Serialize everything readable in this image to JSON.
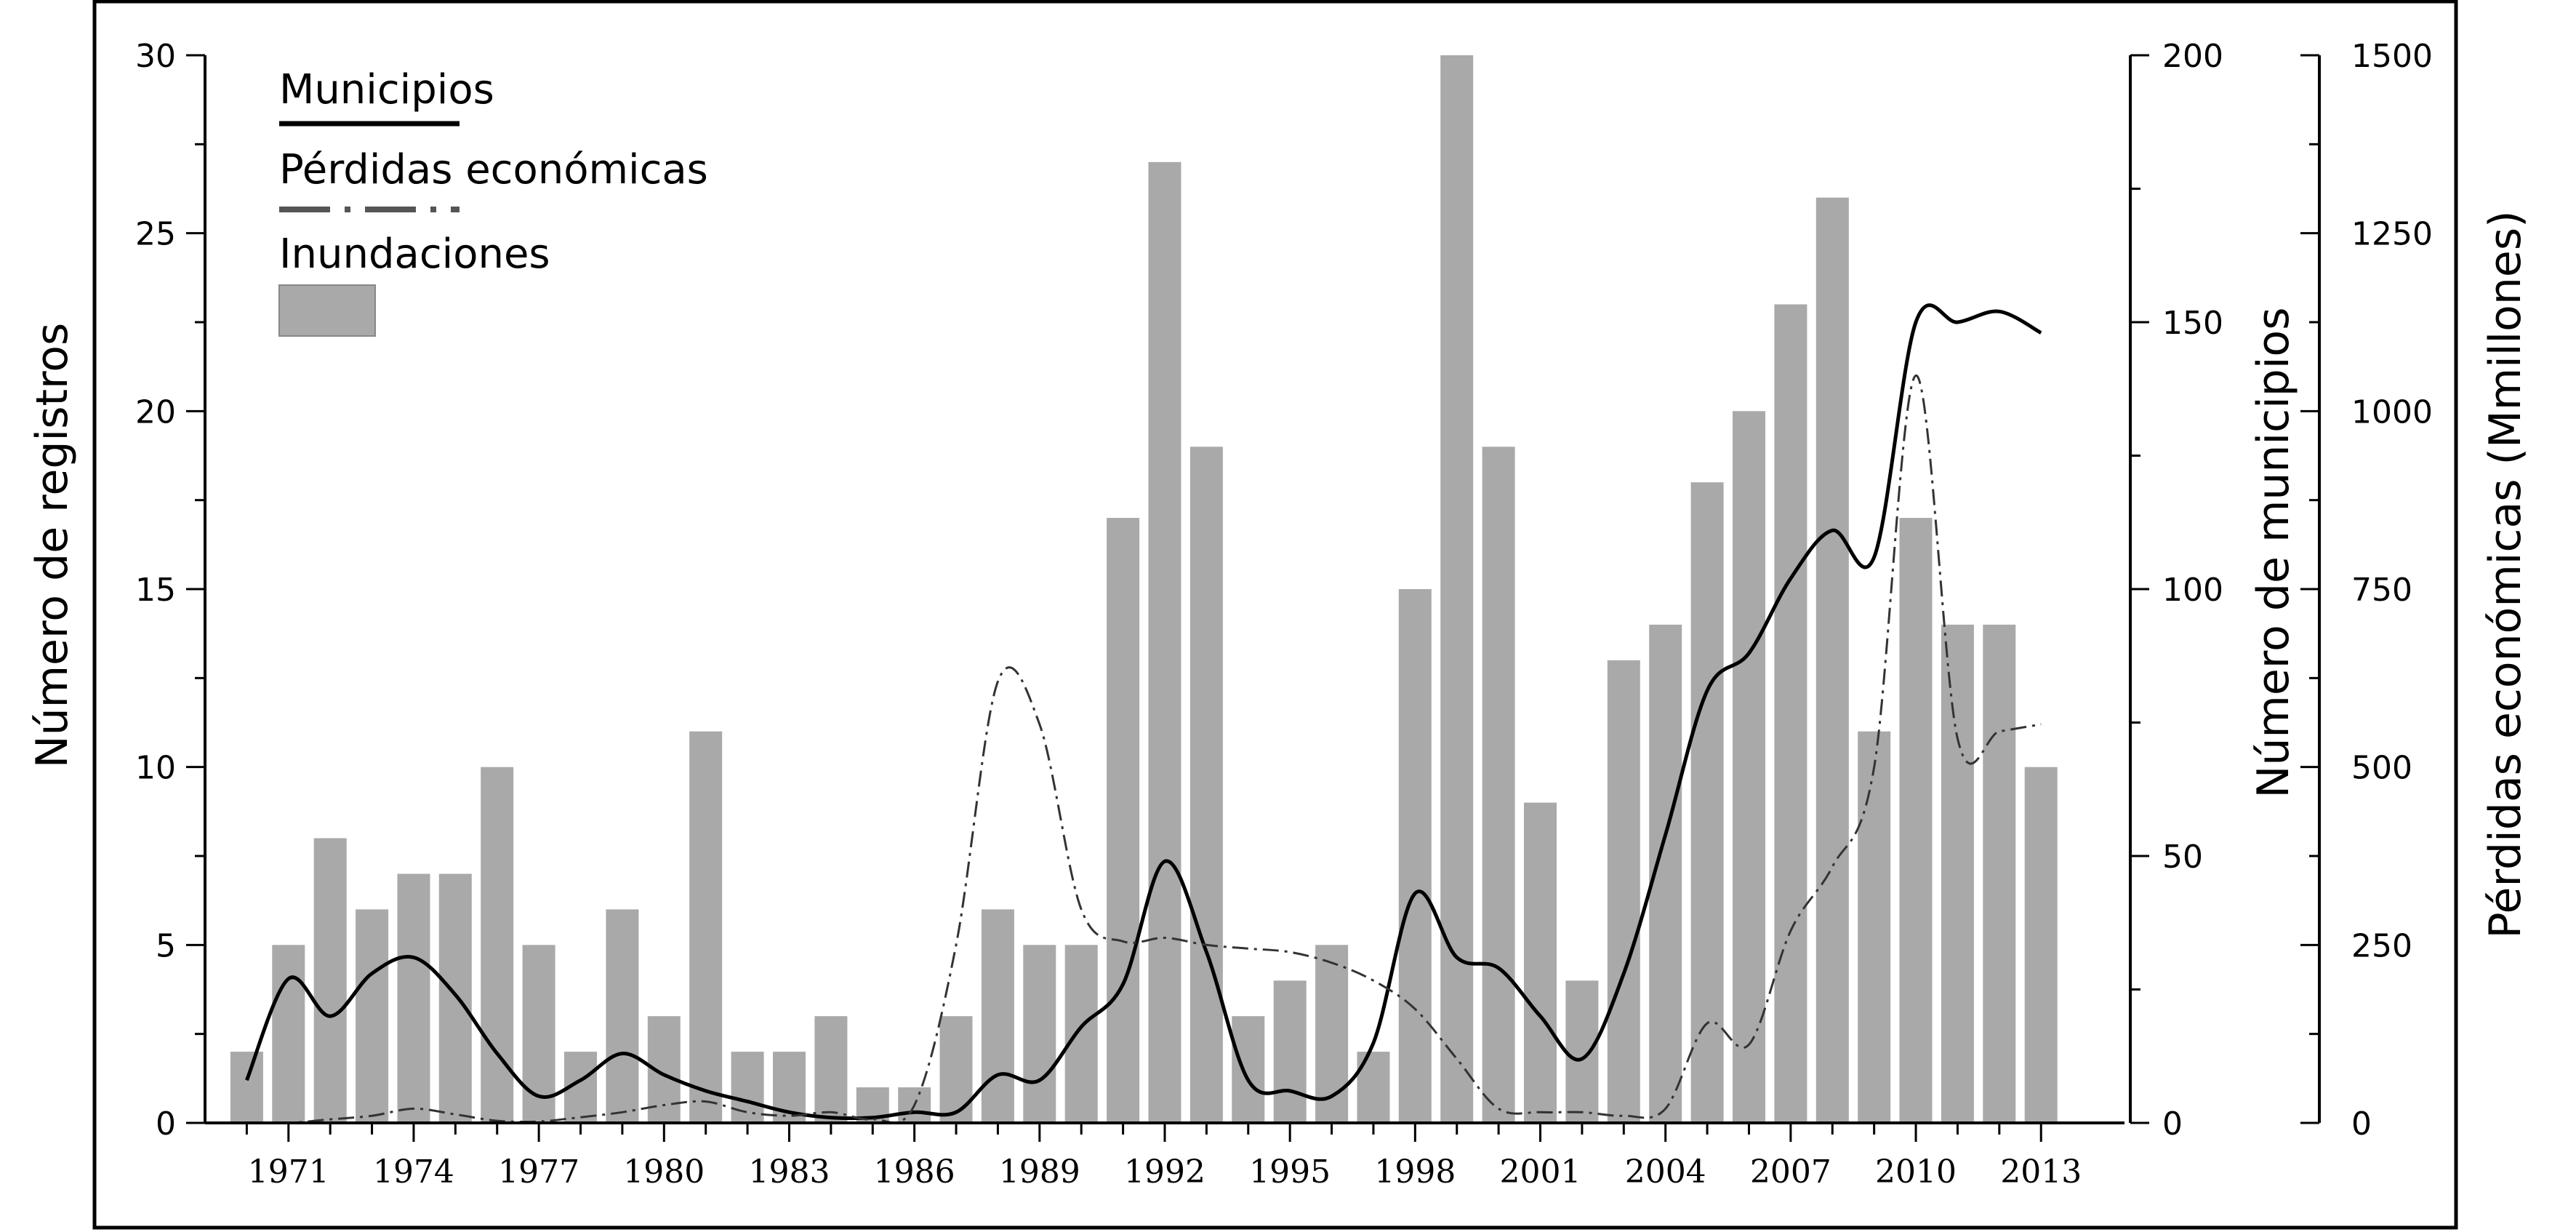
{
  "chart_data": {
    "type": "bar",
    "x": [
      1970,
      1971,
      1972,
      1973,
      1974,
      1975,
      1976,
      1977,
      1978,
      1979,
      1980,
      1981,
      1982,
      1983,
      1984,
      1985,
      1986,
      1987,
      1988,
      1989,
      1990,
      1991,
      1992,
      1993,
      1994,
      1995,
      1996,
      1997,
      1998,
      1999,
      2000,
      2001,
      2002,
      2003,
      2004,
      2005,
      2006,
      2007,
      2008,
      2009,
      2010,
      2011,
      2012,
      2013
    ],
    "x_tick_labels": [
      "1971",
      "1974",
      "1977",
      "1980",
      "1983",
      "1986",
      "1989",
      "1992",
      "1995",
      "1998",
      "2001",
      "2004",
      "2007",
      "2010",
      "2013"
    ],
    "x_tick_values": [
      1971,
      1974,
      1977,
      1980,
      1983,
      1986,
      1989,
      1992,
      1995,
      1998,
      2001,
      2004,
      2007,
      2010,
      2013
    ],
    "xlim": [
      1969,
      2015
    ],
    "series": [
      {
        "name": "Inundaciones",
        "kind": "bar",
        "axis": "left",
        "color": "#a9a9a9",
        "values": [
          2,
          5,
          8,
          6,
          7,
          7,
          10,
          5,
          2,
          6,
          3,
          11,
          2,
          2,
          3,
          1,
          1,
          3,
          6,
          5,
          5,
          17,
          27,
          19,
          3,
          4,
          5,
          2,
          15,
          30,
          19,
          9,
          4,
          13,
          14,
          18,
          20,
          23,
          26,
          11,
          17,
          14,
          14,
          10
        ]
      },
      {
        "name": "Municipios",
        "kind": "line",
        "axis": "right1",
        "color": "#000000",
        "style": "solid",
        "values": [
          8,
          27,
          20,
          28,
          31,
          24,
          13,
          5,
          8,
          13,
          9,
          6,
          4,
          2,
          1,
          1,
          2,
          2,
          9,
          8,
          18,
          26,
          49,
          32,
          8,
          6,
          5,
          15,
          43,
          31,
          29,
          20,
          12,
          28,
          54,
          81,
          88,
          102,
          111,
          106,
          150,
          150,
          152,
          148
        ]
      },
      {
        "name": "Pérdidas económicas",
        "kind": "line",
        "axis": "right2",
        "color": "#333333",
        "style": "dashdot",
        "values": [
          0,
          0,
          5,
          10,
          20,
          12,
          3,
          2,
          8,
          15,
          25,
          30,
          15,
          10,
          15,
          5,
          25,
          250,
          620,
          560,
          300,
          255,
          260,
          250,
          245,
          240,
          225,
          200,
          160,
          90,
          20,
          15,
          15,
          10,
          20,
          140,
          110,
          270,
          360,
          500,
          1050,
          540,
          550,
          560
        ]
      }
    ],
    "axes": {
      "left": {
        "label": "Número de registros",
        "min": 0,
        "max": 30,
        "ticks": [
          0,
          5,
          10,
          15,
          20,
          25,
          30
        ]
      },
      "right1": {
        "label": "Número de municipios",
        "min": 0,
        "max": 200,
        "ticks": [
          0,
          50,
          100,
          150,
          200
        ]
      },
      "right2": {
        "label": "Pérdidas económicas (Mmillones)",
        "min": 0,
        "max": 1500,
        "ticks": [
          0,
          250,
          500,
          750,
          1000,
          1250,
          1500
        ]
      }
    },
    "legend": {
      "placement": "top-left",
      "entries": [
        "Municipios",
        "Pérdidas económicas",
        "Inundaciones"
      ]
    },
    "grid": false
  }
}
